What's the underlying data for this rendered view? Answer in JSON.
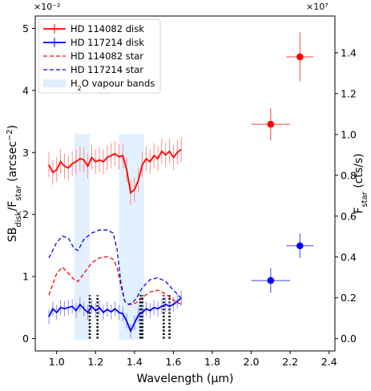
{
  "chart_data": {
    "type": "line",
    "xlabel": "Wavelength (μm)",
    "ylabel_left": "SBdisk/Fstar (arcsec⁻²)",
    "ylabel_right": "Fstar (cts/s)",
    "left_scale_label": "×10⁻²",
    "right_scale_label": "×10⁷",
    "xlim": [
      0.89,
      2.43
    ],
    "ylim_left": [
      -0.2,
      5.2
    ],
    "ylim_right": [
      -0.06,
      1.58
    ],
    "xticks": [
      "1.0",
      "1.2",
      "1.4",
      "1.6",
      "1.8",
      "2.0",
      "2.2",
      "2.4"
    ],
    "xtick_values": [
      1.0,
      1.2,
      1.4,
      1.6,
      1.8,
      2.0,
      2.2,
      2.4
    ],
    "yticks_left": [
      "0",
      "1",
      "2",
      "3",
      "4",
      "5"
    ],
    "ytick_values_left": [
      0,
      1,
      2,
      3,
      4,
      5
    ],
    "yticks_right": [
      "0.0",
      "0.2",
      "0.4",
      "0.6",
      "0.8",
      "1.0",
      "1.2",
      "1.4"
    ],
    "ytick_values_right": [
      0.0,
      0.2,
      0.4,
      0.6,
      0.8,
      1.0,
      1.2,
      1.4
    ],
    "legend_position": "upper-left",
    "legend": [
      {
        "label": "HD 114082 disk",
        "style": "errorbar",
        "color": "#ff0000"
      },
      {
        "label": "HD 117214 disk",
        "style": "errorbar",
        "color": "#0000ff"
      },
      {
        "label": "HD 114082 star",
        "style": "dashed",
        "color": "#ff0000"
      },
      {
        "label": "HD 117214 star",
        "style": "dashed",
        "color": "#0000ff"
      },
      {
        "label_parts": [
          "H",
          "2",
          "O vapour bands"
        ],
        "style": "band",
        "color": "#ddeeff"
      }
    ],
    "water_bands": [
      [
        1.09,
        1.17
      ],
      [
        1.32,
        1.45
      ]
    ],
    "vertical_dotted_lines": [
      1.17,
      1.21,
      1.43,
      1.44,
      1.55,
      1.58
    ],
    "vertical_dotted_range": [
      0,
      0.7
    ],
    "series": [
      {
        "name": "HD 114082 disk",
        "axis": "left",
        "color": "#ff0000",
        "style": "errorbar",
        "x": [
          0.96,
          0.98,
          1.0,
          1.02,
          1.04,
          1.06,
          1.08,
          1.1,
          1.12,
          1.14,
          1.16,
          1.18,
          1.2,
          1.22,
          1.24,
          1.26,
          1.28,
          1.3,
          1.32,
          1.34,
          1.36,
          1.38,
          1.4,
          1.42,
          1.44,
          1.46,
          1.48,
          1.5,
          1.52,
          1.54,
          1.56,
          1.58,
          1.6,
          1.62,
          1.64
        ],
        "y": [
          2.8,
          2.68,
          2.72,
          2.85,
          2.78,
          2.75,
          2.82,
          2.85,
          2.9,
          2.88,
          2.78,
          2.92,
          2.85,
          2.88,
          2.85,
          2.92,
          2.95,
          2.98,
          2.93,
          2.95,
          2.72,
          2.35,
          2.4,
          2.55,
          2.8,
          2.9,
          2.85,
          2.95,
          2.9,
          3.02,
          2.96,
          3.02,
          2.92,
          3.0,
          3.05
        ],
        "yerr": 0.2
      },
      {
        "name": "HD 117214 disk",
        "axis": "left",
        "color": "#0000ff",
        "style": "errorbar",
        "x": [
          0.96,
          0.98,
          1.0,
          1.02,
          1.04,
          1.06,
          1.08,
          1.1,
          1.12,
          1.14,
          1.16,
          1.18,
          1.2,
          1.22,
          1.24,
          1.26,
          1.28,
          1.3,
          1.32,
          1.34,
          1.36,
          1.38,
          1.4,
          1.42,
          1.44,
          1.46,
          1.48,
          1.5,
          1.52,
          1.54,
          1.56,
          1.58,
          1.6,
          1.62,
          1.64
        ],
        "y": [
          0.35,
          0.48,
          0.42,
          0.5,
          0.48,
          0.5,
          0.52,
          0.45,
          0.55,
          0.48,
          0.42,
          0.52,
          0.45,
          0.5,
          0.42,
          0.47,
          0.43,
          0.48,
          0.42,
          0.4,
          0.28,
          0.12,
          0.25,
          0.38,
          0.42,
          0.48,
          0.45,
          0.5,
          0.48,
          0.52,
          0.55,
          0.52,
          0.55,
          0.6,
          0.65
        ],
        "yerr": 0.12
      },
      {
        "name": "HD 114082 star",
        "axis": "left",
        "color": "#ff0000",
        "style": "dashed",
        "x": [
          0.96,
          1.0,
          1.03,
          1.06,
          1.09,
          1.11,
          1.14,
          1.18,
          1.22,
          1.26,
          1.29,
          1.31,
          1.33,
          1.35,
          1.37,
          1.39,
          1.41,
          1.44,
          1.48,
          1.52,
          1.56,
          1.6,
          1.64
        ],
        "y": [
          0.7,
          1.05,
          1.15,
          1.05,
          0.95,
          0.92,
          1.05,
          1.22,
          1.3,
          1.32,
          1.28,
          1.15,
          0.85,
          0.6,
          0.55,
          0.55,
          0.58,
          0.66,
          0.75,
          0.78,
          0.72,
          0.62,
          0.55
        ]
      },
      {
        "name": "HD 117214 star",
        "axis": "left",
        "color": "#0000ff",
        "style": "dashed",
        "x": [
          0.96,
          1.0,
          1.03,
          1.06,
          1.09,
          1.11,
          1.14,
          1.18,
          1.22,
          1.26,
          1.29,
          1.31,
          1.33,
          1.35,
          1.37,
          1.39,
          1.41,
          1.44,
          1.48,
          1.52,
          1.56,
          1.6,
          1.64
        ],
        "y": [
          1.3,
          1.55,
          1.65,
          1.62,
          1.45,
          1.42,
          1.6,
          1.7,
          1.75,
          1.75,
          1.7,
          1.45,
          0.9,
          0.6,
          0.55,
          0.58,
          0.65,
          0.82,
          0.95,
          0.98,
          0.92,
          0.78,
          0.65
        ]
      },
      {
        "name": "HD 114082 photometry",
        "axis": "right",
        "color": "#ff0000",
        "style": "points",
        "x": [
          2.1,
          2.25
        ],
        "y": [
          1.05,
          1.38
        ],
        "xerr": [
          0.1,
          0.07
        ],
        "yerr": [
          0.08,
          0.12
        ]
      },
      {
        "name": "HD 117214 photometry",
        "axis": "right",
        "color": "#0000ff",
        "style": "points",
        "x": [
          2.1,
          2.25
        ],
        "y": [
          0.285,
          0.455
        ],
        "xerr": [
          0.1,
          0.07
        ],
        "yerr": [
          0.06,
          0.06
        ]
      }
    ]
  }
}
